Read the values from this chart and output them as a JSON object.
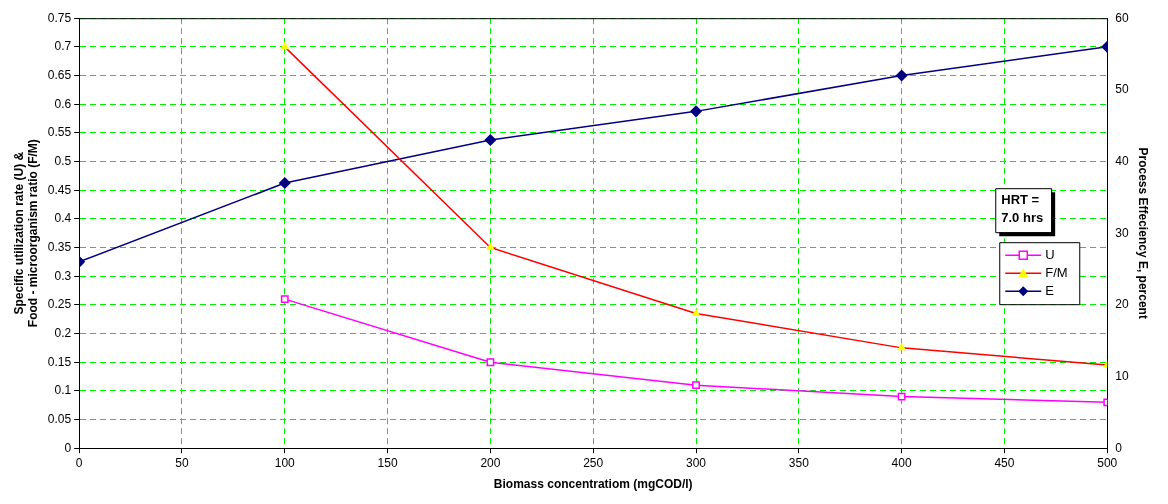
{
  "chart_data": {
    "type": "line",
    "xlabel": "Biomass concentratiom (mgCOD/l)",
    "ylabel": "Specific utilization rate (U) & Food - microorganism ratio (F/M)",
    "y2label": "Process Effeciency E, percent",
    "x": [
      0,
      100,
      200,
      300,
      400,
      500
    ],
    "series": [
      {
        "name": "U",
        "color": "#ff00ff",
        "marker": "square",
        "values": [
          null,
          0.26,
          0.15,
          0.11,
          0.09,
          0.08
        ]
      },
      {
        "name": "F/M",
        "color": "#ff0000",
        "marker": "triangle",
        "values": [
          null,
          0.7,
          0.35,
          0.235,
          0.175,
          0.145
        ]
      },
      {
        "name": "E",
        "color": "#000080",
        "marker": "diamond",
        "axis": "y2",
        "values": [
          26,
          37,
          43,
          47,
          52,
          56
        ]
      }
    ],
    "xlim": [
      0,
      500
    ],
    "xticks": [
      0,
      50,
      100,
      150,
      200,
      250,
      300,
      350,
      400,
      450,
      500
    ],
    "ylim": [
      0,
      0.75
    ],
    "yticks": [
      0,
      0.05,
      0.1,
      0.15,
      0.2,
      0.25,
      0.3,
      0.35,
      0.4,
      0.45,
      0.5,
      0.55,
      0.6,
      0.65,
      0.7,
      0.75
    ],
    "y2lim": [
      0,
      60
    ],
    "y2ticks": [
      0,
      10,
      20,
      30,
      40,
      50,
      60
    ],
    "annotations": [
      "HRT = 7.0 hrs"
    ],
    "grid": true,
    "legend": "right"
  }
}
